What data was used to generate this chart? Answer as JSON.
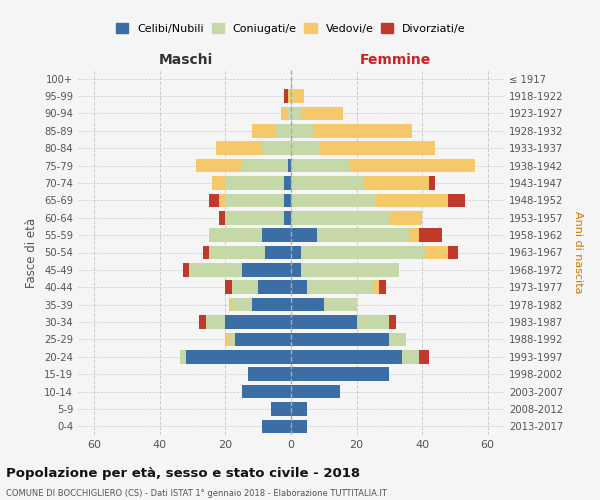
{
  "age_groups": [
    "100+",
    "95-99",
    "90-94",
    "85-89",
    "80-84",
    "75-79",
    "70-74",
    "65-69",
    "60-64",
    "55-59",
    "50-54",
    "45-49",
    "40-44",
    "35-39",
    "30-34",
    "25-29",
    "20-24",
    "15-19",
    "10-14",
    "5-9",
    "0-4"
  ],
  "birth_years": [
    "≤ 1917",
    "1918-1922",
    "1923-1927",
    "1928-1932",
    "1933-1937",
    "1938-1942",
    "1943-1947",
    "1948-1952",
    "1953-1957",
    "1958-1962",
    "1963-1967",
    "1968-1972",
    "1973-1977",
    "1978-1982",
    "1983-1987",
    "1988-1992",
    "1993-1997",
    "1998-2002",
    "2003-2007",
    "2008-2012",
    "2013-2017"
  ],
  "colors": {
    "celibi": "#3b6ea5",
    "coniugati": "#c5d9a8",
    "vedovi": "#f5c96a",
    "divorziati": "#c0392b"
  },
  "maschi": {
    "celibi": [
      0,
      0,
      0,
      0,
      0,
      1,
      2,
      2,
      2,
      9,
      8,
      15,
      10,
      12,
      20,
      17,
      32,
      13,
      15,
      6,
      9
    ],
    "coniugati": [
      0,
      0,
      1,
      5,
      9,
      14,
      18,
      18,
      18,
      16,
      17,
      16,
      8,
      6,
      6,
      2,
      2,
      0,
      0,
      0,
      0
    ],
    "vedovi": [
      0,
      1,
      2,
      7,
      14,
      14,
      4,
      2,
      0,
      0,
      0,
      0,
      0,
      1,
      0,
      1,
      0,
      0,
      0,
      0,
      0
    ],
    "divorziati": [
      0,
      1,
      0,
      0,
      0,
      0,
      0,
      3,
      2,
      0,
      2,
      2,
      2,
      0,
      2,
      0,
      0,
      0,
      0,
      0,
      0
    ]
  },
  "femmine": {
    "celibi": [
      0,
      0,
      0,
      0,
      0,
      0,
      0,
      0,
      0,
      8,
      3,
      3,
      5,
      10,
      20,
      30,
      34,
      30,
      15,
      5,
      5
    ],
    "coniugati": [
      0,
      1,
      3,
      7,
      9,
      18,
      22,
      26,
      30,
      28,
      38,
      30,
      20,
      10,
      10,
      5,
      5,
      0,
      0,
      0,
      0
    ],
    "vedovi": [
      0,
      3,
      13,
      30,
      35,
      38,
      20,
      22,
      10,
      3,
      7,
      0,
      2,
      0,
      0,
      0,
      0,
      0,
      0,
      0,
      0
    ],
    "divorziati": [
      0,
      0,
      0,
      0,
      0,
      0,
      2,
      5,
      0,
      7,
      3,
      0,
      2,
      0,
      2,
      0,
      3,
      0,
      0,
      0,
      0
    ]
  },
  "xlim": 65,
  "title": "Popolazione per età, sesso e stato civile - 2018",
  "subtitle": "COMUNE DI BOCCHIGLIERO (CS) - Dati ISTAT 1° gennaio 2018 - Elaborazione TUTTITALIA.IT",
  "xlabel_left": "Maschi",
  "xlabel_right": "Femmine",
  "ylabel": "Fasce di età",
  "ylabel_right": "Anni di nascita",
  "legend_labels": [
    "Celibi/Nubili",
    "Coniugati/e",
    "Vedovi/e",
    "Divorziati/e"
  ],
  "bg_color": "#f5f5f5"
}
